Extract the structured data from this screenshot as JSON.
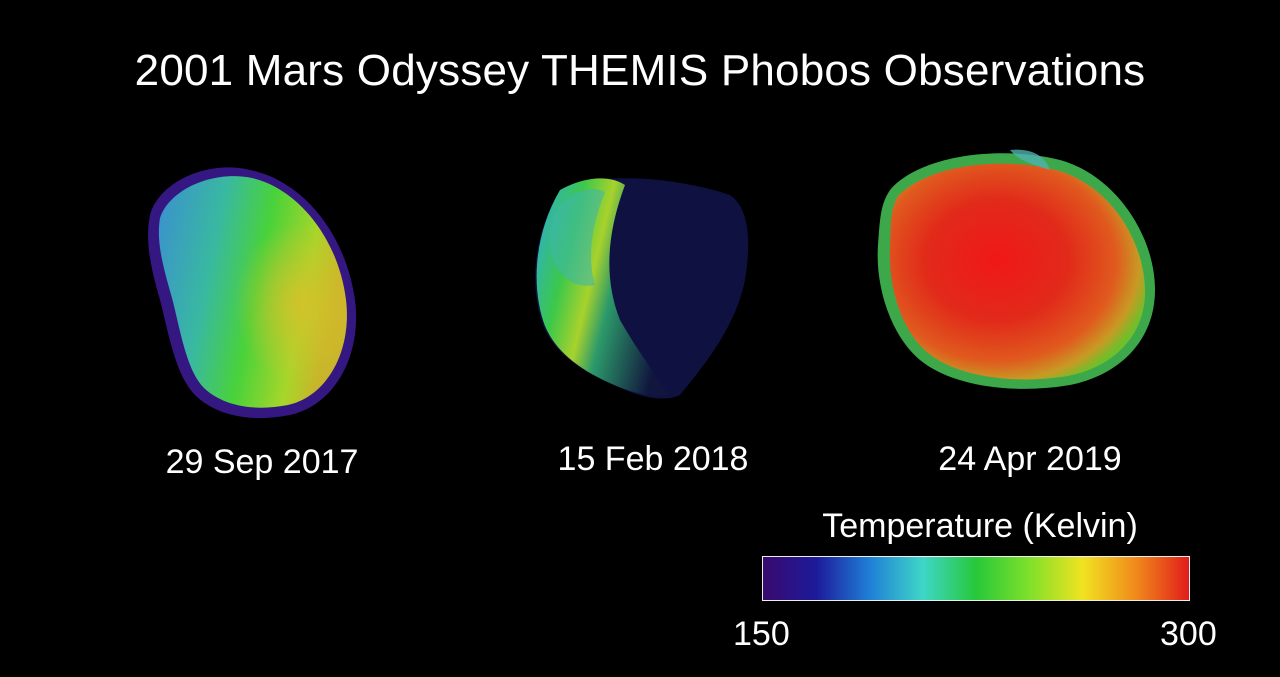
{
  "title": "2001 Mars Odyssey THEMIS Phobos Observations",
  "observations": [
    {
      "date": "29 Sep 2017"
    },
    {
      "date": "15 Feb 2018"
    },
    {
      "date": "24 Apr 2019"
    }
  ],
  "legend": {
    "title": "Temperature (Kelvin)",
    "min_label": "150",
    "max_label": "300",
    "gradient_colors": [
      "#3a0a6e",
      "#1d1a9a",
      "#1f7fd6",
      "#3fd6c8",
      "#27c83a",
      "#7fe02a",
      "#f0e321",
      "#f08a1b",
      "#e11d1b"
    ]
  }
}
